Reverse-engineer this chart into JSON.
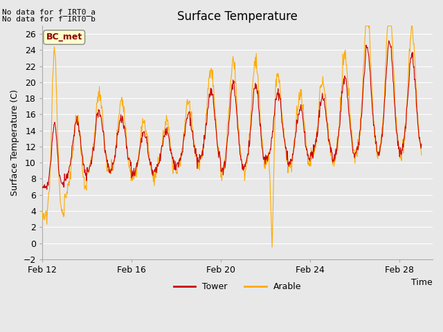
{
  "title": "Surface Temperature",
  "ylabel": "Surface Temperature (C)",
  "xlabel": "Time",
  "annotation_line1": "No data for f_IRT0_a",
  "annotation_line2": "No data for f̅IRT0̅b",
  "bc_met_label": "BC_met",
  "legend_tower": "Tower",
  "legend_arable": "Arable",
  "tower_color": "#cc0000",
  "arable_color": "#ffaa00",
  "fig_bg_color": "#e8e8e8",
  "plot_bg_color": "#e8e8e8",
  "grid_color": "#ffffff",
  "ylim": [
    -2,
    27
  ],
  "yticks": [
    -2,
    0,
    2,
    4,
    6,
    8,
    10,
    12,
    14,
    16,
    18,
    20,
    22,
    24,
    26
  ],
  "xlim": [
    12,
    29.5
  ],
  "xtick_positions": [
    12,
    16,
    20,
    24,
    28
  ],
  "xtick_labels": [
    "Feb 12",
    "Feb 16",
    "Feb 20",
    "Feb 24",
    "Feb 28"
  ],
  "title_fontsize": 12,
  "label_fontsize": 9,
  "tick_fontsize": 9,
  "annot_fontsize": 8,
  "bc_fontsize": 9,
  "line_width": 0.8
}
